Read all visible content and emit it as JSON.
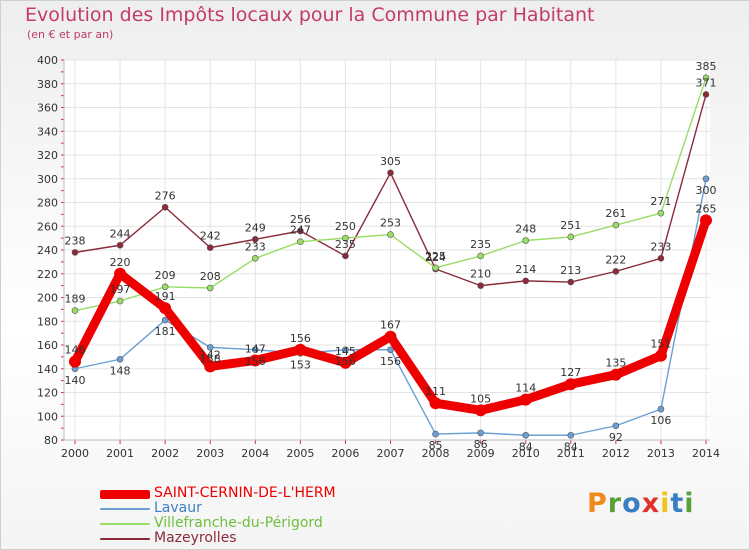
{
  "title": "Evolution des Impôts locaux pour la Commune par Habitant",
  "subtitle": "(en € et par an)",
  "logo": {
    "text": "Proxiti",
    "letter_colors": [
      "#f08a1d",
      "#5aa03b",
      "#3a7fc4",
      "#e2312b",
      "#f0c419",
      "#3a7fc4",
      "#5aa03b"
    ]
  },
  "chart_data": {
    "type": "line",
    "x": [
      "2000",
      "2001",
      "2002",
      "2003",
      "2004",
      "2005",
      "2006",
      "2007",
      "2008",
      "2009",
      "2010",
      "2011",
      "2012",
      "2013",
      "2014"
    ],
    "ylim": [
      80,
      400
    ],
    "yticks": [
      80,
      100,
      120,
      140,
      160,
      180,
      200,
      220,
      240,
      260,
      280,
      300,
      320,
      340,
      360,
      380,
      400
    ],
    "grid": true,
    "legend_position": "bottom-left",
    "series": [
      {
        "name": "SAINT-CERNIN-DE-L'HERM",
        "color": "#ee0000",
        "width": 9,
        "values": [
          146,
          220,
          191,
          142,
          147,
          156,
          145,
          167,
          111,
          105,
          114,
          127,
          135,
          151,
          265
        ],
        "labels": [
          "146",
          "220",
          "191",
          "142",
          "147",
          "156",
          "145",
          "167",
          "111",
          "105",
          "114",
          "127",
          "135",
          "151",
          "265"
        ]
      },
      {
        "name": "Lavaur",
        "color": "#6a9fd4",
        "width": 1.4,
        "values": [
          140,
          148,
          181,
          158,
          156,
          153,
          156,
          156,
          85,
          86,
          84,
          84,
          92,
          106,
          300
        ],
        "labels": [
          "140",
          "148",
          "181",
          "158",
          "156",
          "153",
          "156",
          "156",
          "85",
          "86",
          "84",
          "84",
          "92",
          "106",
          "300"
        ]
      },
      {
        "name": "Villefranche-du-Périgord",
        "color": "#99dd66",
        "width": 1.4,
        "values": [
          189,
          197,
          209,
          208,
          233,
          247,
          250,
          253,
          225,
          235,
          248,
          251,
          261,
          271,
          385
        ],
        "labels": [
          "189",
          "197",
          "209",
          "208",
          "233",
          "247",
          "250",
          "253",
          "225",
          "235",
          "248",
          "251",
          "261",
          "271",
          "385"
        ]
      },
      {
        "name": "Mazeyrolles",
        "color": "#8b2b3a",
        "width": 1.4,
        "values": [
          238,
          244,
          276,
          242,
          249,
          256,
          235,
          305,
          224,
          210,
          214,
          213,
          222,
          233,
          371
        ],
        "labels": [
          "238",
          "244",
          "276",
          "242",
          "249",
          "256",
          "235",
          "305",
          "224",
          "210",
          "214",
          "213",
          "222",
          "233",
          "371"
        ]
      }
    ]
  }
}
